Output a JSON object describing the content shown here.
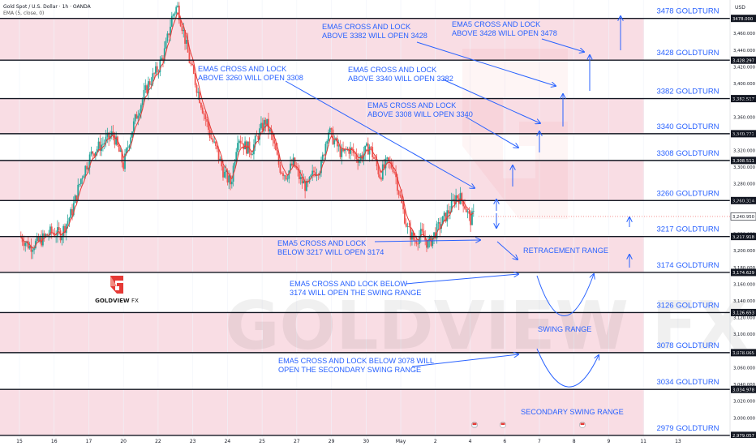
{
  "header": {
    "symbol_line": "Gold Spot / U.S. Dollar · 1h · OANDA",
    "indicator_line": "EMA (5, close, 0)"
  },
  "logo": {
    "brand": "GOLDVIEW",
    "suffix": "FX"
  },
  "watermark": "GOLDVIEW FX",
  "colors": {
    "band": "#f9dde4",
    "level_line": "#131722",
    "annotation": "#2962ff",
    "candle_up": "#26a69a",
    "candle_down": "#ef5350",
    "ema": "#e53935",
    "logo_red": "#e53935"
  },
  "chart_data": {
    "type": "candlestick",
    "symbol": "XAUUSD",
    "timeframe": "1h",
    "currency": "USD",
    "y_axis": {
      "range": [
        2976,
        3500
      ],
      "ticks": [
        3460,
        3440,
        3420,
        3400,
        3380,
        3360,
        3340,
        3320,
        3300,
        3280,
        3260,
        3240,
        3220,
        3200,
        3180,
        3160,
        3140,
        3120,
        3100,
        3080,
        3060,
        3040,
        3020,
        3000
      ]
    },
    "x_axis": {
      "range": [
        0,
        20.5
      ],
      "ticks": [
        {
          "label": "15",
          "x": 0
        },
        {
          "label": "16",
          "x": 1
        },
        {
          "label": "17",
          "x": 2
        },
        {
          "label": "20",
          "x": 3
        },
        {
          "label": "22",
          "x": 4
        },
        {
          "label": "23",
          "x": 5
        },
        {
          "label": "24",
          "x": 6
        },
        {
          "label": "25",
          "x": 7
        },
        {
          "label": "27",
          "x": 8
        },
        {
          "label": "29",
          "x": 9
        },
        {
          "label": "30",
          "x": 10
        },
        {
          "label": "May",
          "x": 11
        },
        {
          "label": "2",
          "x": 12
        },
        {
          "label": "4",
          "x": 13
        },
        {
          "label": "6",
          "x": 14
        },
        {
          "label": "7",
          "x": 15
        },
        {
          "label": "8",
          "x": 16
        },
        {
          "label": "9",
          "x": 17
        },
        {
          "label": "11",
          "x": 18
        },
        {
          "label": "13",
          "x": 19
        }
      ]
    },
    "levels": [
      {
        "price": 3478,
        "label": "3478 GOLDTURN",
        "tag": "3478.000"
      },
      {
        "price": 3428,
        "label": "3428 GOLDTURN",
        "tag": "3,428.297"
      },
      {
        "price": 3382,
        "label": "3382 GOLDTURN",
        "tag": "3,382.517"
      },
      {
        "price": 3340,
        "label": "3340 GOLDTURN",
        "tag": "3,340.771"
      },
      {
        "price": 3308,
        "label": "3308 GOLDTURN",
        "tag": "3,308.511"
      },
      {
        "price": 3260,
        "label": "3260 GOLDTURN",
        "tag": "3,260.314"
      },
      {
        "price": 3217,
        "label": "3217 GOLDTURN",
        "tag": "3,217.918"
      },
      {
        "price": 3174,
        "label": "3174 GOLDTURN",
        "tag": "3,174.629"
      },
      {
        "price": 3126,
        "label": "3126 GOLDTURN",
        "tag": "3,126.653"
      },
      {
        "price": 3078,
        "label": "3078 GOLDTURN",
        "tag": "3,078.065"
      },
      {
        "price": 3034,
        "label": "3034 GOLDTURN",
        "tag": "3,034.978"
      },
      {
        "price": 2979,
        "label": "2979 GOLDTURN",
        "tag": "2,979.057"
      }
    ],
    "last_price": {
      "price": 3240.95,
      "tag": "3,240.950"
    },
    "bands": [
      [
        3428,
        3478
      ],
      [
        3340,
        3382
      ],
      [
        3260,
        3308
      ],
      [
        3174,
        3217
      ],
      [
        3078,
        3126
      ],
      [
        2979,
        3034
      ]
    ],
    "price_path": [
      [
        0.0,
        3218
      ],
      [
        0.3,
        3205
      ],
      [
        0.6,
        3212
      ],
      [
        0.9,
        3222
      ],
      [
        1.2,
        3220
      ],
      [
        1.5,
        3245
      ],
      [
        1.8,
        3290
      ],
      [
        2.1,
        3318
      ],
      [
        2.4,
        3328
      ],
      [
        2.7,
        3340
      ],
      [
        3.0,
        3302
      ],
      [
        3.2,
        3338
      ],
      [
        3.4,
        3365
      ],
      [
        3.7,
        3398
      ],
      [
        4.0,
        3418
      ],
      [
        4.2,
        3440
      ],
      [
        4.4,
        3480
      ],
      [
        4.55,
        3493
      ],
      [
        4.7,
        3468
      ],
      [
        4.9,
        3428
      ],
      [
        5.1,
        3398
      ],
      [
        5.3,
        3368
      ],
      [
        5.5,
        3338
      ],
      [
        5.7,
        3318
      ],
      [
        5.9,
        3292
      ],
      [
        6.1,
        3280
      ],
      [
        6.3,
        3338
      ],
      [
        6.5,
        3325
      ],
      [
        6.7,
        3320
      ],
      [
        6.9,
        3340
      ],
      [
        7.1,
        3355
      ],
      [
        7.3,
        3333
      ],
      [
        7.5,
        3300
      ],
      [
        7.7,
        3290
      ],
      [
        7.9,
        3305
      ],
      [
        8.1,
        3285
      ],
      [
        8.3,
        3275
      ],
      [
        8.5,
        3295
      ],
      [
        8.7,
        3300
      ],
      [
        8.9,
        3345
      ],
      [
        9.1,
        3330
      ],
      [
        9.3,
        3315
      ],
      [
        9.5,
        3322
      ],
      [
        9.8,
        3310
      ],
      [
        10.1,
        3325
      ],
      [
        10.4,
        3290
      ],
      [
        10.6,
        3305
      ],
      [
        10.8,
        3300
      ],
      [
        11.0,
        3260
      ],
      [
        11.2,
        3225
      ],
      [
        11.4,
        3212
      ],
      [
        11.6,
        3220
      ],
      [
        11.8,
        3207
      ],
      [
        12.0,
        3222
      ],
      [
        12.2,
        3235
      ],
      [
        12.4,
        3248
      ],
      [
        12.6,
        3266
      ],
      [
        12.8,
        3260
      ],
      [
        13.0,
        3236
      ],
      [
        13.1,
        3242
      ]
    ]
  },
  "annotations": [
    {
      "id": "a3428",
      "line1": "EMA5 CROSS AND LOCK",
      "line2": "ABOVE 3428 WILL OPEN 3478"
    },
    {
      "id": "a3382",
      "line1": "EMA5 CROSS AND LOCK",
      "line2": "ABOVE 3382 WILL OPEN 3428"
    },
    {
      "id": "a3260",
      "line1": "EMA5 CROSS AND LOCK",
      "line2": "ABOVE 3260 WILL OPEN 3308"
    },
    {
      "id": "a3340",
      "line1": "EMA5 CROSS AND LOCK",
      "line2": "ABOVE 3340 WILL OPEN 3382"
    },
    {
      "id": "a3308",
      "line1": "EMA5 CROSS AND LOCK",
      "line2": "ABOVE 3308 WILL OPEN 3340"
    },
    {
      "id": "a3217",
      "line1": "EMA5 CROSS AND LOCK",
      "line2": "BELOW 3217 WILL OPEN 3174"
    },
    {
      "id": "a3174",
      "line1": "EMA5 CROSS AND LOCK BELOW",
      "line2": "3174 WILL OPEN THE SWING RANGE"
    },
    {
      "id": "a3078",
      "line1": "EMA5 CROSS AND LOCK BELOW 3078 WILL",
      "line2": "OPEN THE SECONDARY SWING RANGE"
    }
  ],
  "range_labels": {
    "retracement": "RETRACEMENT RANGE",
    "swing": "SWING RANGE",
    "secondary": "SECONDARY SWING RANGE"
  }
}
